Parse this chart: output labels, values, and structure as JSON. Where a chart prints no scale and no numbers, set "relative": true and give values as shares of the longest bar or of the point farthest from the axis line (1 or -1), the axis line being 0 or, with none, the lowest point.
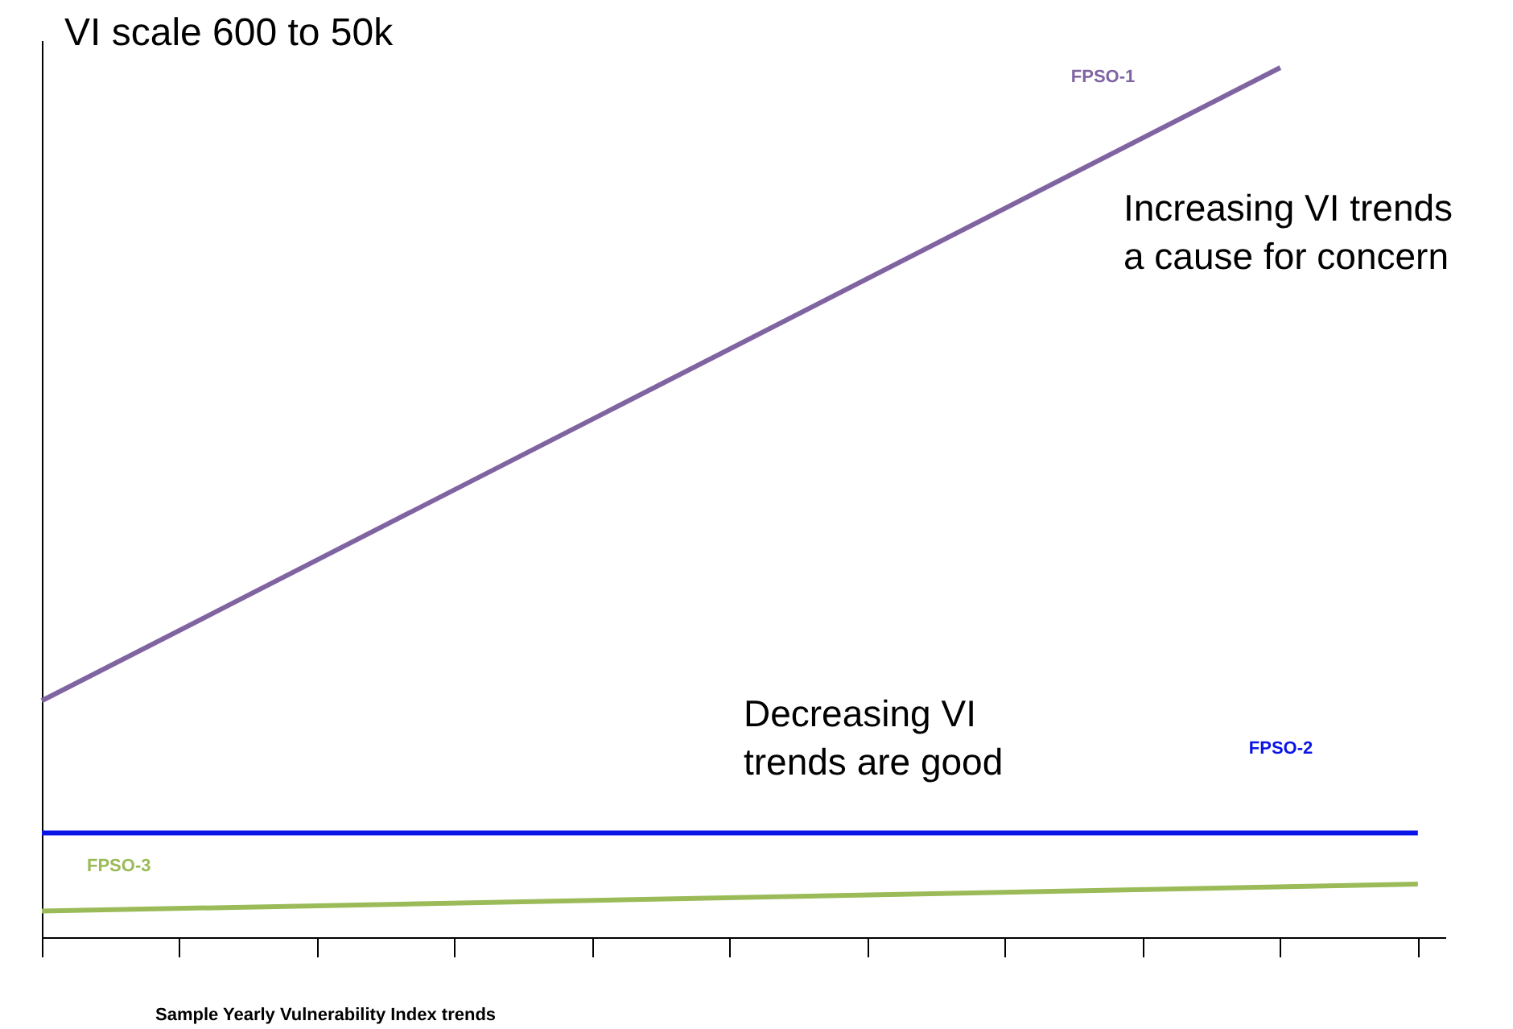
{
  "chart_data": {
    "type": "line",
    "title": "VI scale 600 to 50k",
    "xlabel": "Sample Yearly Vulnerability Index trends",
    "relative": true,
    "categories": [
      null,
      null,
      null,
      null,
      null,
      null,
      null,
      null,
      null,
      null,
      null
    ],
    "series": [
      {
        "name": "FPSO-1",
        "color": "#8064a2",
        "values": [
          0.272,
          null,
          null,
          null,
          null,
          null,
          null,
          null,
          null,
          1,
          null
        ]
      },
      {
        "name": "FPSO-2",
        "color": "#0a14e6",
        "values": [
          0.12,
          null,
          null,
          null,
          null,
          null,
          null,
          null,
          null,
          null,
          0.12
        ]
      },
      {
        "name": "FPSO-3",
        "color": "#9bbb59",
        "values": [
          0.03,
          null,
          null,
          null,
          null,
          null,
          null,
          null,
          null,
          null,
          0.061
        ]
      }
    ],
    "annotations": [
      "Increasing VI trends\na cause for concern",
      "Decreasing VI\ntrends are good"
    ],
    "grid": false,
    "legend": false,
    "marker": "none",
    "line_style": "solid"
  }
}
